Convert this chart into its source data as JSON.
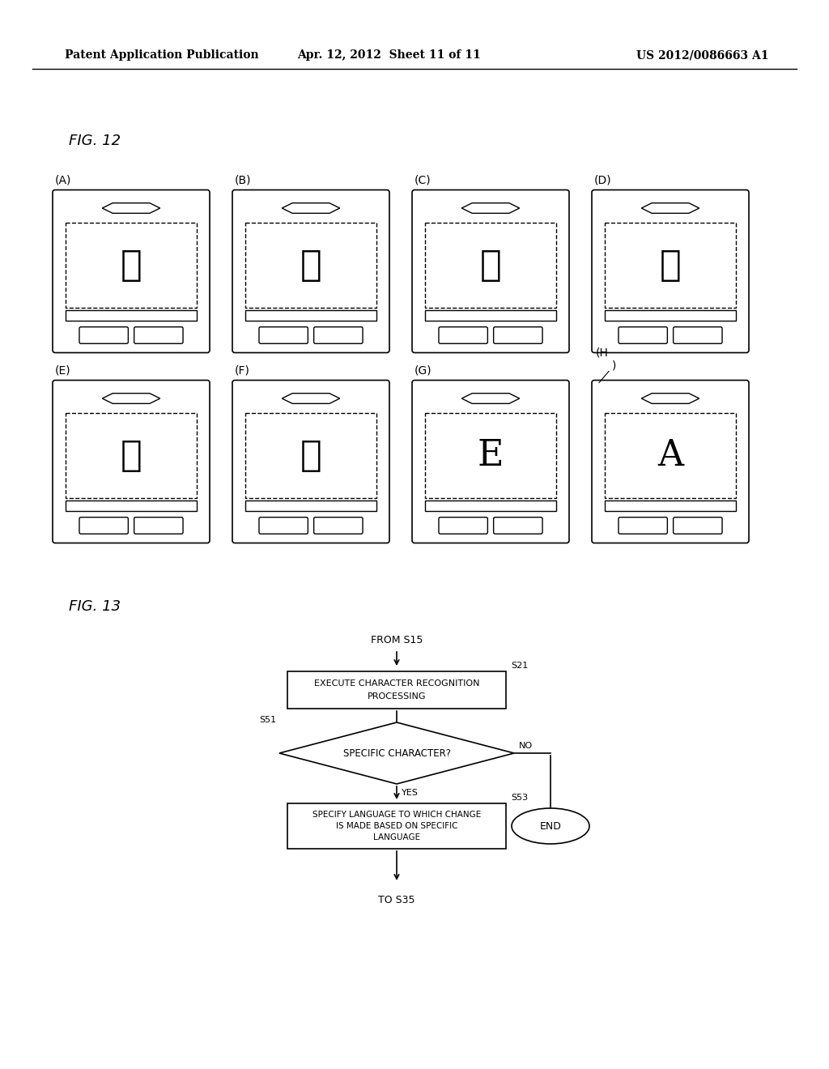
{
  "bg_color": "#ffffff",
  "header_left": "Patent Application Publication",
  "header_mid": "Apr. 12, 2012  Sheet 11 of 11",
  "header_right": "US 2012/0086663 A1",
  "fig12_label": "FIG. 12",
  "fig13_label": "FIG. 13",
  "phone_labels_row1": [
    "(A)",
    "(B)",
    "(C)",
    "(D)"
  ],
  "phone_labels_row2": [
    "(E)",
    "(F)",
    "(G)"
  ],
  "phone_label_h": "(H",
  "phone_chars_row1": [
    "日",
    "あ",
    "中",
    "亞"
  ],
  "phone_chars_row2": [
    "乾",
    "計",
    "E",
    "A"
  ],
  "fc_from": "FROM S15",
  "fc_s21_line1": "EXECUTE CHARACTER RECOGNITION",
  "fc_s21_line2": "PROCESSING",
  "fc_s21_label": "S21",
  "fc_s51_text": "SPECIFIC CHARACTER?",
  "fc_s51_label": "S51",
  "fc_yes": "YES",
  "fc_no": "NO",
  "fc_s53_line1": "SPECIFY LANGUAGE TO WHICH CHANGE",
  "fc_s53_line2": "IS MADE BASED ON SPECIFIC",
  "fc_s53_line3": "LANGUAGE",
  "fc_s53_label": "S53",
  "fc_end": "END",
  "fc_to": "TO S35"
}
